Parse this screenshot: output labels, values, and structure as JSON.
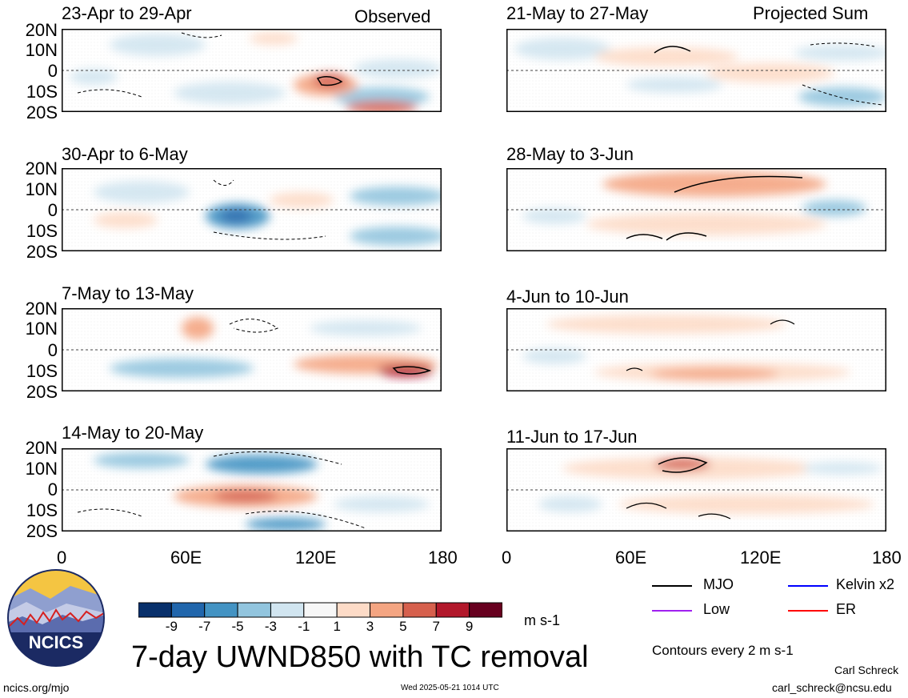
{
  "panels": [
    {
      "title": "23-Apr to 29-Apr",
      "tag": "Observed"
    },
    {
      "title": "21-May to 27-May",
      "tag": "Projected Sum"
    },
    {
      "title": "30-Apr to 6-May",
      "tag": ""
    },
    {
      "title": "28-May to 3-Jun",
      "tag": ""
    },
    {
      "title": "7-May to 13-May",
      "tag": ""
    },
    {
      "title": "4-Jun to 10-Jun",
      "tag": ""
    },
    {
      "title": "14-May to 20-May",
      "tag": ""
    },
    {
      "title": "11-Jun to 17-Jun",
      "tag": ""
    }
  ],
  "lat_labels": [
    "20N",
    "10N",
    "0",
    "10S",
    "20S"
  ],
  "lon_labels": [
    "0",
    "60E",
    "120E",
    "180"
  ],
  "colorbar": {
    "colors": [
      "#08306b",
      "#2166ac",
      "#4393c3",
      "#92c5de",
      "#d1e5f0",
      "#f7f7f7",
      "#fddbc7",
      "#f4a582",
      "#d6604d",
      "#b2182b",
      "#67001f"
    ],
    "labels": [
      "-9",
      "-7",
      "-5",
      "-3",
      "-1",
      "1",
      "3",
      "5",
      "7",
      "9"
    ],
    "units": "m s-1"
  },
  "legend": {
    "mjo": "MJO",
    "kelvin": "Kelvin x2",
    "low": "Low",
    "er": "ER",
    "colors": {
      "mjo": "#000000",
      "kelvin": "#0000ff",
      "low": "#a020f0",
      "er": "#ff0000"
    }
  },
  "contours_note": "Contours every 2 m s-1",
  "main_title": "7-day UWND850 with TC removal",
  "logo_text": "NCICS",
  "footer": {
    "url": "ncics.org/mjo",
    "timestamp": "Wed 2025-05-21 1014 UTC",
    "author": "Carl Schreck",
    "email": "carl_schreck@ncsu.edu"
  }
}
